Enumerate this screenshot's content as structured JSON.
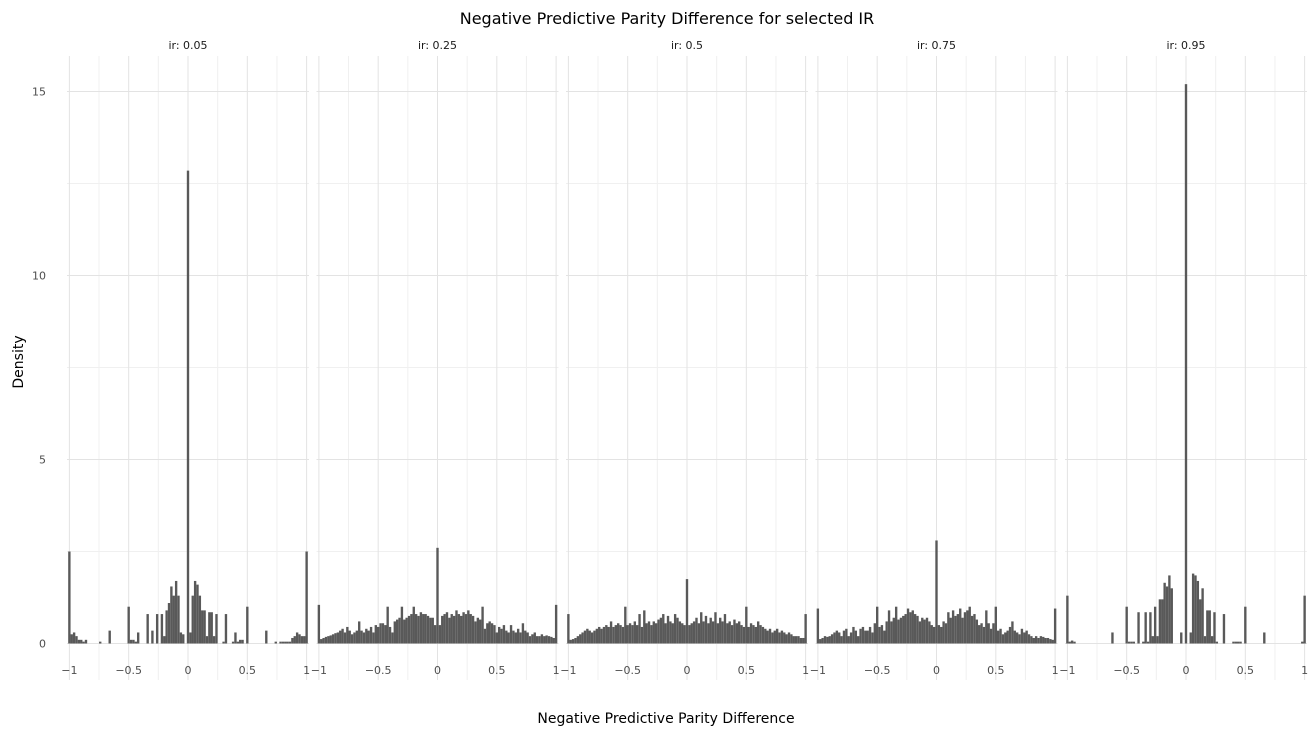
{
  "chart_data": {
    "type": "bar",
    "title": "Negative Predictive Parity Difference for selected IR",
    "xlabel": "Negative Predictive Parity Difference",
    "ylabel": "Density",
    "xlim": [
      -1.02,
      1.02
    ],
    "ylim": [
      0,
      15.5
    ],
    "x_ticks": [
      -1,
      -0.5,
      0,
      0.5,
      1
    ],
    "x_tick_labels": [
      "−1",
      "−0.5",
      "0",
      "0.5",
      "1"
    ],
    "y_ticks": [
      0,
      5,
      10,
      15
    ],
    "y_tick_labels": [
      "0",
      "5",
      "10",
      "15"
    ],
    "grid": true,
    "legend": "none",
    "bar_color": "#595959",
    "bin_width": 0.02,
    "x": [
      -1.0,
      -0.98,
      -0.96,
      -0.94,
      -0.92,
      -0.9,
      -0.88,
      -0.86,
      -0.84,
      -0.82,
      -0.8,
      -0.78,
      -0.76,
      -0.74,
      -0.72,
      -0.7,
      -0.68,
      -0.66,
      -0.64,
      -0.62,
      -0.6,
      -0.58,
      -0.56,
      -0.54,
      -0.52,
      -0.5,
      -0.48,
      -0.46,
      -0.44,
      -0.42,
      -0.4,
      -0.38,
      -0.36,
      -0.34,
      -0.32,
      -0.3,
      -0.28,
      -0.26,
      -0.24,
      -0.22,
      -0.2,
      -0.18,
      -0.16,
      -0.14,
      -0.12,
      -0.1,
      -0.08,
      -0.06,
      -0.04,
      -0.02,
      0.0,
      0.02,
      0.04,
      0.06,
      0.08,
      0.1,
      0.12,
      0.14,
      0.16,
      0.18,
      0.2,
      0.22,
      0.24,
      0.26,
      0.28,
      0.3,
      0.32,
      0.34,
      0.36,
      0.38,
      0.4,
      0.42,
      0.44,
      0.46,
      0.48,
      0.5,
      0.52,
      0.54,
      0.56,
      0.58,
      0.6,
      0.62,
      0.64,
      0.66,
      0.68,
      0.7,
      0.72,
      0.74,
      0.76,
      0.78,
      0.8,
      0.82,
      0.84,
      0.86,
      0.88,
      0.9,
      0.92,
      0.94,
      0.96,
      0.98,
      1.0
    ],
    "facets": [
      {
        "label": "ir: 0.05",
        "values": [
          2.5,
          0.25,
          0.3,
          0.2,
          0.1,
          0.1,
          0.05,
          0.1,
          0.0,
          0.0,
          0.0,
          0.0,
          0.0,
          0.05,
          0.0,
          0.0,
          0.0,
          0.35,
          0.0,
          0.0,
          0.0,
          0.0,
          0.0,
          0.0,
          0.0,
          1.0,
          0.1,
          0.1,
          0.05,
          0.3,
          0.0,
          0.0,
          0.0,
          0.8,
          0.0,
          0.35,
          0.0,
          0.8,
          0.0,
          0.8,
          0.2,
          0.9,
          1.1,
          1.55,
          1.3,
          1.7,
          1.3,
          0.3,
          0.25,
          0.0,
          12.85,
          0.3,
          1.3,
          1.7,
          1.6,
          1.3,
          0.9,
          0.9,
          0.2,
          0.85,
          0.85,
          0.2,
          0.8,
          0.0,
          0.0,
          0.05,
          0.8,
          0.0,
          0.0,
          0.05,
          0.3,
          0.05,
          0.1,
          0.1,
          0.0,
          1.0,
          0.0,
          0.0,
          0.0,
          0.0,
          0.0,
          0.0,
          0.0,
          0.35,
          0.0,
          0.0,
          0.0,
          0.05,
          0.0,
          0.05,
          0.05,
          0.05,
          0.05,
          0.05,
          0.15,
          0.2,
          0.3,
          0.25,
          0.2,
          0.2,
          2.5
        ]
      },
      {
        "label": "ir: 0.25",
        "values": [
          1.05,
          0.12,
          0.15,
          0.18,
          0.2,
          0.22,
          0.25,
          0.28,
          0.3,
          0.35,
          0.4,
          0.3,
          0.45,
          0.35,
          0.25,
          0.3,
          0.35,
          0.6,
          0.35,
          0.3,
          0.4,
          0.35,
          0.45,
          0.3,
          0.5,
          0.45,
          0.55,
          0.55,
          0.5,
          1.0,
          0.45,
          0.3,
          0.6,
          0.65,
          0.7,
          1.0,
          0.65,
          0.7,
          0.75,
          0.8,
          1.0,
          0.8,
          0.75,
          0.85,
          0.8,
          0.8,
          0.75,
          0.7,
          0.7,
          0.5,
          2.6,
          0.5,
          0.75,
          0.8,
          0.85,
          0.7,
          0.8,
          0.75,
          0.9,
          0.8,
          0.75,
          0.85,
          0.8,
          0.9,
          0.8,
          0.75,
          0.6,
          0.7,
          0.65,
          1.0,
          0.4,
          0.55,
          0.6,
          0.55,
          0.5,
          0.3,
          0.45,
          0.4,
          0.5,
          0.35,
          0.3,
          0.5,
          0.35,
          0.3,
          0.4,
          0.3,
          0.55,
          0.35,
          0.3,
          0.2,
          0.25,
          0.3,
          0.2,
          0.2,
          0.25,
          0.2,
          0.22,
          0.2,
          0.18,
          0.15,
          1.05
        ]
      },
      {
        "label": "ir: 0.5",
        "values": [
          0.8,
          0.1,
          0.12,
          0.15,
          0.2,
          0.25,
          0.3,
          0.35,
          0.4,
          0.35,
          0.3,
          0.35,
          0.4,
          0.45,
          0.4,
          0.45,
          0.5,
          0.45,
          0.6,
          0.45,
          0.5,
          0.55,
          0.5,
          0.45,
          1.0,
          0.5,
          0.55,
          0.5,
          0.6,
          0.5,
          0.8,
          0.45,
          0.9,
          0.55,
          0.6,
          0.5,
          0.6,
          0.55,
          0.65,
          0.7,
          0.8,
          0.55,
          0.75,
          0.6,
          0.55,
          0.8,
          0.7,
          0.6,
          0.55,
          0.5,
          1.75,
          0.5,
          0.55,
          0.6,
          0.7,
          0.55,
          0.85,
          0.6,
          0.75,
          0.55,
          0.7,
          0.6,
          0.85,
          0.55,
          0.7,
          0.6,
          0.8,
          0.55,
          0.6,
          0.5,
          0.65,
          0.55,
          0.6,
          0.5,
          0.45,
          1.0,
          0.45,
          0.55,
          0.5,
          0.45,
          0.6,
          0.5,
          0.45,
          0.4,
          0.35,
          0.4,
          0.3,
          0.35,
          0.4,
          0.3,
          0.35,
          0.3,
          0.25,
          0.3,
          0.25,
          0.2,
          0.2,
          0.2,
          0.15,
          0.15,
          0.8
        ]
      },
      {
        "label": "ir: 0.75",
        "values": [
          0.95,
          0.12,
          0.15,
          0.2,
          0.18,
          0.2,
          0.25,
          0.3,
          0.35,
          0.3,
          0.2,
          0.35,
          0.4,
          0.2,
          0.3,
          0.45,
          0.35,
          0.2,
          0.4,
          0.45,
          0.35,
          0.35,
          0.45,
          0.3,
          0.55,
          1.0,
          0.45,
          0.5,
          0.35,
          0.6,
          0.9,
          0.6,
          0.7,
          1.0,
          0.65,
          0.7,
          0.75,
          0.8,
          0.95,
          0.85,
          0.9,
          0.8,
          0.75,
          0.6,
          0.7,
          0.65,
          0.7,
          0.6,
          0.5,
          0.45,
          2.8,
          0.5,
          0.45,
          0.6,
          0.55,
          0.85,
          0.7,
          0.9,
          0.75,
          0.8,
          0.95,
          0.7,
          0.85,
          0.9,
          1.0,
          0.75,
          0.8,
          0.65,
          0.5,
          0.55,
          0.45,
          0.9,
          0.55,
          0.4,
          0.55,
          1.0,
          0.35,
          0.4,
          0.25,
          0.3,
          0.35,
          0.45,
          0.6,
          0.35,
          0.3,
          0.25,
          0.4,
          0.3,
          0.35,
          0.25,
          0.2,
          0.15,
          0.2,
          0.15,
          0.2,
          0.18,
          0.15,
          0.15,
          0.12,
          0.1,
          0.95
        ]
      },
      {
        "label": "ir: 0.95",
        "values": [
          1.3,
          0.05,
          0.08,
          0.05,
          0.0,
          0.0,
          0.0,
          0.0,
          0.0,
          0.0,
          0.0,
          0.0,
          0.0,
          0.0,
          0.0,
          0.0,
          0.0,
          0.0,
          0.0,
          0.3,
          0.0,
          0.0,
          0.0,
          0.0,
          0.0,
          1.0,
          0.05,
          0.05,
          0.05,
          0.0,
          0.85,
          0.0,
          0.05,
          0.85,
          0.05,
          0.85,
          0.2,
          1.0,
          0.2,
          1.2,
          1.2,
          1.65,
          1.55,
          1.85,
          1.5,
          0.0,
          0.0,
          0.0,
          0.3,
          0.0,
          15.2,
          0.0,
          0.3,
          1.9,
          1.85,
          1.7,
          1.2,
          1.5,
          0.2,
          0.9,
          0.9,
          0.2,
          0.85,
          0.05,
          0.0,
          0.0,
          0.8,
          0.0,
          0.0,
          0.0,
          0.05,
          0.05,
          0.05,
          0.05,
          0.0,
          1.0,
          0.0,
          0.0,
          0.0,
          0.0,
          0.0,
          0.0,
          0.0,
          0.3,
          0.0,
          0.0,
          0.0,
          0.0,
          0.0,
          0.0,
          0.0,
          0.0,
          0.0,
          0.0,
          0.0,
          0.0,
          0.0,
          0.0,
          0.0,
          0.05,
          1.3
        ]
      }
    ]
  }
}
